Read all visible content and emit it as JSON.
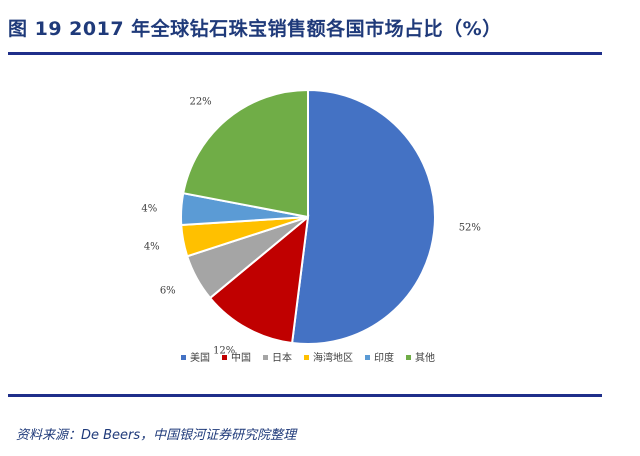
{
  "figure": {
    "title": "图 19 2017 年全球钻石珠宝销售额各国市场占比（%）",
    "source": "资料来源：De Beers，中国银河证券研究院整理"
  },
  "chart_data": {
    "type": "pie",
    "title": "",
    "slices": [
      {
        "name": "美国",
        "value": 52,
        "label": "52%",
        "color": "#4472c4"
      },
      {
        "name": "中国",
        "value": 12,
        "label": "12%",
        "color": "#c00000"
      },
      {
        "name": "日本",
        "value": 6,
        "label": "6%",
        "color": "#a5a5a5"
      },
      {
        "name": "海湾地区",
        "value": 4,
        "label": "4%",
        "color": "#ffc000"
      },
      {
        "name": "印度",
        "value": 4,
        "label": "4%",
        "color": "#5b9bd5"
      },
      {
        "name": "其他",
        "value": 22,
        "label": "22%",
        "color": "#70ad47"
      }
    ],
    "legend_position": "bottom"
  }
}
